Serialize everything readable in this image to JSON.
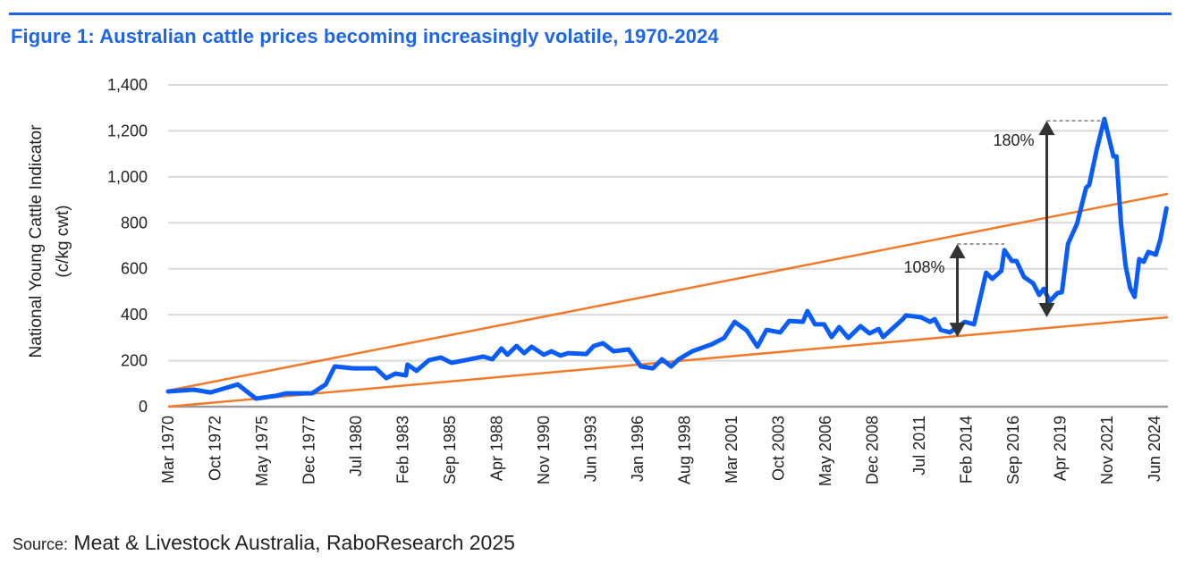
{
  "title": "Figure 1: Australian cattle prices becoming increasingly volatile, 1970-2024",
  "source": {
    "label": "Source:",
    "text": " Meat & Livestock Australia, RaboResearch 2025"
  },
  "colors": {
    "title": "#1f66e6",
    "series": "#0a5cf5",
    "trend": "#f07a2a",
    "arrow": "#333333",
    "grid": "#d9d9d9"
  },
  "chart_data": {
    "type": "line",
    "title": "Figure 1: Australian cattle prices becoming increasingly volatile, 1970-2024",
    "ylabel": [
      "National Young Cattle Indicator",
      "(c/kg cwt)"
    ],
    "xlabel": "",
    "ylim": [
      0,
      1400
    ],
    "xlim": [
      "1970-03",
      "2025-03"
    ],
    "yticks": [
      "0",
      "200",
      "400",
      "600",
      "800",
      "1,000",
      "1,200",
      "1,400"
    ],
    "ytick_values": [
      0,
      200,
      400,
      600,
      800,
      1000,
      1200,
      1400
    ],
    "xticks": [
      "Mar 1970",
      "Oct 1972",
      "May 1975",
      "Dec 1977",
      "Jul 1980",
      "Feb 1983",
      "Sep 1985",
      "Apr 1988",
      "Nov 1990",
      "Jun 1993",
      "Jan 1996",
      "Aug 1998",
      "Mar 2001",
      "Oct 2003",
      "May 2006",
      "Dec 2008",
      "Jul 2011",
      "Feb 2014",
      "Sep 2016",
      "Apr 2019",
      "Nov 2021",
      "Jun 2024"
    ],
    "xtick_dates": [
      "1970-03",
      "1972-10",
      "1975-05",
      "1977-12",
      "1980-07",
      "1983-02",
      "1985-09",
      "1988-04",
      "1990-11",
      "1993-06",
      "1996-01",
      "1998-08",
      "2001-03",
      "2003-10",
      "2006-05",
      "2008-12",
      "2011-07",
      "2014-02",
      "2016-09",
      "2019-04",
      "2021-11",
      "2024-06"
    ],
    "grid": "horizontal",
    "series": [
      {
        "x": [
          "1970-03",
          "1971-08",
          "1972-07",
          "1974-01",
          "1975-01",
          "1976-02",
          "1976-09",
          "1978-02",
          "1978-11",
          "1979-05",
          "1980-05",
          "1981-08",
          "1982-03",
          "1982-09",
          "1983-04",
          "1983-05",
          "1983-11",
          "1984-07",
          "1985-03",
          "1985-10",
          "1986-07",
          "1987-07",
          "1988-01",
          "1988-07",
          "1988-11",
          "1989-05",
          "1989-10",
          "1990-03",
          "1990-11",
          "1991-04",
          "1991-10",
          "1992-03",
          "1993-03",
          "1993-08",
          "1994-02",
          "1994-09",
          "1995-07",
          "1996-03",
          "1996-11",
          "1997-05",
          "1997-11",
          "1998-04",
          "1999-01",
          "2000-02",
          "2000-10",
          "2001-05",
          "2002-01",
          "2002-08",
          "2003-02",
          "2003-11",
          "2004-05",
          "2005-02",
          "2005-05",
          "2005-10",
          "2006-04",
          "2006-09",
          "2007-02",
          "2007-08",
          "2008-04",
          "2008-10",
          "2009-04",
          "2009-07",
          "2010-08",
          "2010-10",
          "2011-08",
          "2012-02",
          "2012-05",
          "2012-09",
          "2013-03",
          "2014-01",
          "2014-07",
          "2015-03",
          "2015-07",
          "2016-01",
          "2016-03",
          "2016-08",
          "2016-11",
          "2017-04",
          "2017-10",
          "2018-02",
          "2018-05",
          "2018-09",
          "2019-02",
          "2019-05",
          "2019-09",
          "2020-03",
          "2020-09",
          "2020-11",
          "2021-04",
          "2021-09",
          "2021-11",
          "2022-03",
          "2022-05",
          "2022-08",
          "2022-11",
          "2023-02",
          "2023-05",
          "2023-08",
          "2023-11",
          "2024-02",
          "2024-07",
          "2024-10",
          "2025-02"
        ],
        "y": [
          66,
          74,
          62,
          97,
          35,
          47,
          58,
          58,
          97,
          175,
          167,
          167,
          124,
          144,
          136,
          183,
          156,
          202,
          214,
          191,
          202,
          218,
          206,
          253,
          226,
          264,
          233,
          261,
          226,
          241,
          222,
          233,
          229,
          264,
          276,
          241,
          249,
          175,
          167,
          206,
          175,
          206,
          241,
          272,
          299,
          369,
          331,
          261,
          334,
          323,
          373,
          369,
          416,
          358,
          358,
          303,
          346,
          299,
          350,
          319,
          338,
          303,
          381,
          397,
          389,
          369,
          381,
          334,
          323,
          369,
          358,
          583,
          556,
          591,
          681,
          634,
          634,
          564,
          537,
          486,
          513,
          459,
          494,
          498,
          708,
          797,
          953,
          964,
          1120,
          1252,
          1198,
          1089,
          1089,
          797,
          614,
          517,
          478,
          642,
          630,
          673,
          661,
          727,
          863
        ]
      }
    ],
    "trend_lines": [
      {
        "x": [
          "1970-03",
          "2025-03"
        ],
        "y": [
          70,
          926
        ]
      },
      {
        "x": [
          "1970-03",
          "2025-03"
        ],
        "y": [
          0,
          389
        ]
      }
    ],
    "annotations": [
      {
        "label": "108%",
        "x": "2013-08",
        "y_from": 303,
        "y_to": 708,
        "dashed_to_x": "2016-03"
      },
      {
        "label": "180%",
        "x": "2018-07",
        "y_from": 389,
        "y_to": 1244,
        "dashed_to_x": "2021-09"
      }
    ]
  }
}
